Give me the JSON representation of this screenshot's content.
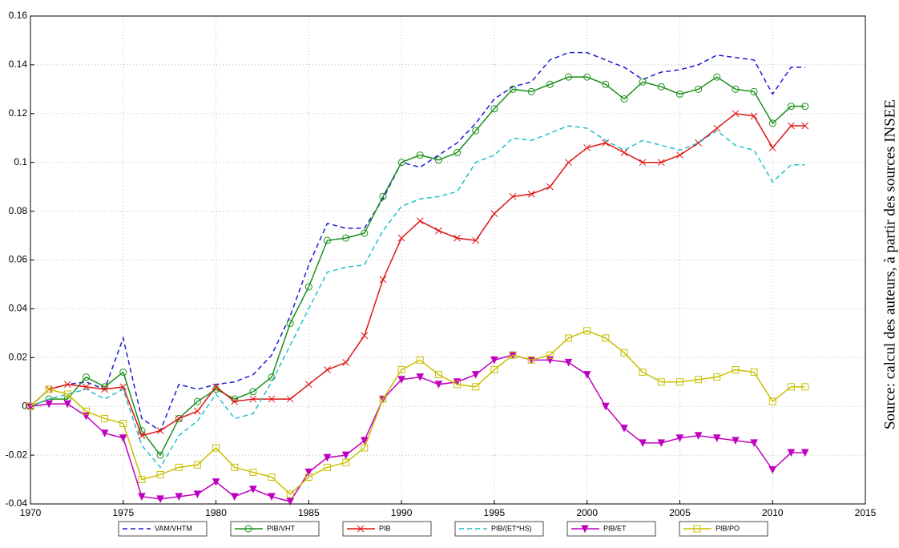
{
  "chart_data": {
    "type": "line",
    "annotation": "Source: calcul des auteurs, à partir des sources INSEE",
    "x": [
      1970,
      1971,
      1972,
      1973,
      1974,
      1975,
      1976,
      1977,
      1978,
      1979,
      1980,
      1981,
      1982,
      1983,
      1984,
      1985,
      1986,
      1987,
      1988,
      1989,
      1990,
      1991,
      1992,
      1993,
      1994,
      1995,
      1996,
      1997,
      1998,
      1999,
      2000,
      2001,
      2002,
      2003,
      2004,
      2005,
      2006,
      2007,
      2008,
      2009,
      2010,
      2011,
      2011.75
    ],
    "series": [
      {
        "name": "VAM/VHTM",
        "color": "#1c1cd4",
        "line_style": "dashed",
        "marker": "none",
        "values": [
          0,
          0.007,
          0.009,
          0.01,
          0.007,
          0.028,
          -0.005,
          -0.01,
          0.009,
          0.007,
          0.009,
          0.01,
          0.013,
          0.021,
          0.037,
          0.058,
          0.075,
          0.073,
          0.073,
          0.085,
          0.1,
          0.098,
          0.103,
          0.108,
          0.116,
          0.126,
          0.131,
          0.133,
          0.142,
          0.145,
          0.145,
          0.142,
          0.139,
          0.134,
          0.137,
          0.138,
          0.14,
          0.144,
          0.143,
          0.142,
          0.128,
          0.139,
          0.139
        ]
      },
      {
        "name": "PIB/VHT",
        "color": "#1a8f1a",
        "line_style": "solid",
        "marker": "circle",
        "values": [
          0,
          0.003,
          0.003,
          0.012,
          0.008,
          0.014,
          -0.01,
          -0.02,
          -0.005,
          0.002,
          0.007,
          0.003,
          0.006,
          0.012,
          0.034,
          0.049,
          0.068,
          0.069,
          0.071,
          0.086,
          0.1,
          0.103,
          0.101,
          0.104,
          0.113,
          0.122,
          0.13,
          0.129,
          0.132,
          0.135,
          0.135,
          0.132,
          0.126,
          0.133,
          0.131,
          0.128,
          0.13,
          0.135,
          0.13,
          0.129,
          0.116,
          0.123,
          0.123
        ]
      },
      {
        "name": "PIB",
        "color": "#e01414",
        "line_style": "solid",
        "marker": "x",
        "values": [
          0,
          0.007,
          0.009,
          0.008,
          0.007,
          0.008,
          -0.012,
          -0.01,
          -0.005,
          -0.002,
          0.008,
          0.002,
          0.003,
          0.003,
          0.003,
          0.009,
          0.015,
          0.018,
          0.029,
          0.052,
          0.069,
          0.076,
          0.072,
          0.069,
          0.068,
          0.079,
          0.086,
          0.087,
          0.09,
          0.1,
          0.106,
          0.108,
          0.104,
          0.1,
          0.1,
          0.103,
          0.108,
          0.114,
          0.12,
          0.119,
          0.106,
          0.115,
          0.115
        ]
      },
      {
        "name": "PIB/(ET*HS)",
        "color": "#22c0c8",
        "line_style": "dashed",
        "marker": "none",
        "values": [
          0,
          0.003,
          0.005,
          0.007,
          0.003,
          0.007,
          -0.016,
          -0.025,
          -0.012,
          -0.006,
          0.005,
          -0.005,
          -0.003,
          0.01,
          0.025,
          0.04,
          0.055,
          0.057,
          0.058,
          0.072,
          0.082,
          0.085,
          0.086,
          0.088,
          0.1,
          0.103,
          0.11,
          0.109,
          0.112,
          0.115,
          0.114,
          0.109,
          0.105,
          0.109,
          0.107,
          0.105,
          0.108,
          0.113,
          0.107,
          0.105,
          0.092,
          0.099,
          0.099
        ]
      },
      {
        "name": "PIB/ET",
        "color": "#c000c0",
        "line_style": "solid",
        "marker": "triangle",
        "values": [
          0,
          0.001,
          0.001,
          -0.004,
          -0.011,
          -0.013,
          -0.037,
          -0.038,
          -0.037,
          -0.036,
          -0.031,
          -0.037,
          -0.034,
          -0.037,
          -0.039,
          -0.027,
          -0.021,
          -0.02,
          -0.014,
          0.003,
          0.011,
          0.012,
          0.009,
          0.01,
          0.013,
          0.019,
          0.021,
          0.019,
          0.019,
          0.018,
          0.013,
          0,
          -0.009,
          -0.015,
          -0.015,
          -0.013,
          -0.012,
          -0.013,
          -0.014,
          -0.015,
          -0.026,
          -0.019,
          -0.019
        ]
      },
      {
        "name": "PIB/PO",
        "color": "#c8c000",
        "line_style": "solid",
        "marker": "square",
        "values": [
          0,
          0.007,
          0.005,
          -0.002,
          -0.005,
          -0.007,
          -0.03,
          -0.028,
          -0.025,
          -0.024,
          -0.017,
          -0.025,
          -0.027,
          -0.029,
          -0.036,
          -0.029,
          -0.025,
          -0.023,
          -0.017,
          0.003,
          0.015,
          0.019,
          0.013,
          0.009,
          0.008,
          0.015,
          0.021,
          0.019,
          0.021,
          0.028,
          0.031,
          0.028,
          0.022,
          0.014,
          0.01,
          0.01,
          0.011,
          0.012,
          0.015,
          0.014,
          0.002,
          0.008,
          0.008
        ]
      }
    ],
    "xlim": [
      1970,
      2015
    ],
    "xticks": [
      1970,
      1975,
      1980,
      1985,
      1990,
      1995,
      2000,
      2005,
      2010,
      2015
    ],
    "ylim": [
      -0.04,
      0.16
    ],
    "yticks": [
      -0.04,
      -0.02,
      0,
      0.02,
      0.04,
      0.06,
      0.08,
      0.1,
      0.12,
      0.14,
      0.16
    ],
    "grid": true,
    "legend": "bottom"
  }
}
